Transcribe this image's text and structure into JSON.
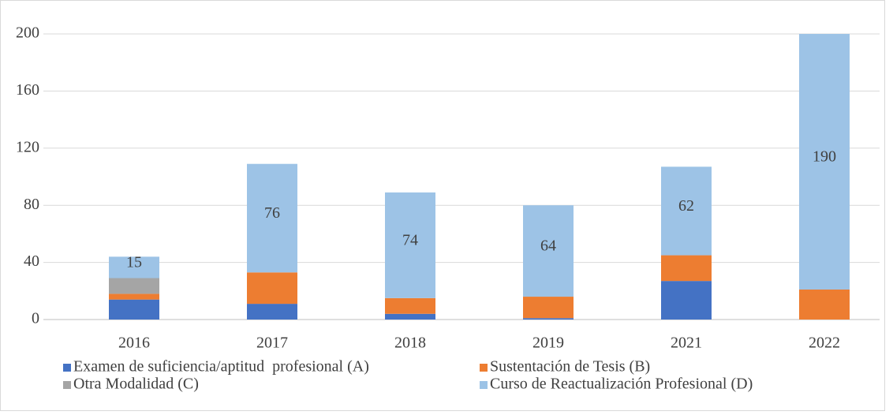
{
  "chart_data": {
    "type": "stacked_bar",
    "categories": [
      "2016",
      "2017",
      "2018",
      "2019",
      "2021",
      "2022"
    ],
    "series": [
      {
        "name": "Examen de suficiencia/aptitud  profesional (A)",
        "color": "#4472c4",
        "values": [
          14,
          11,
          4,
          1,
          27,
          0
        ]
      },
      {
        "name": "Sustentación de Tesis (B)",
        "color": "#ed7d31",
        "values": [
          4,
          22,
          11,
          15,
          18,
          21
        ]
      },
      {
        "name": "Otra Modalidad (C)",
        "color": "#a5a5a5",
        "values": [
          11,
          0,
          0,
          0,
          0,
          0
        ]
      },
      {
        "name": "Curso de Reactualización Profesional (D)",
        "color": "#9dc3e6",
        "values": [
          15,
          76,
          74,
          64,
          62,
          190
        ],
        "data_labels": true
      }
    ],
    "ylim": [
      0,
      200
    ],
    "yticks": [
      0,
      40,
      80,
      120,
      160,
      200
    ],
    "grid": true,
    "legend": "bottom"
  }
}
